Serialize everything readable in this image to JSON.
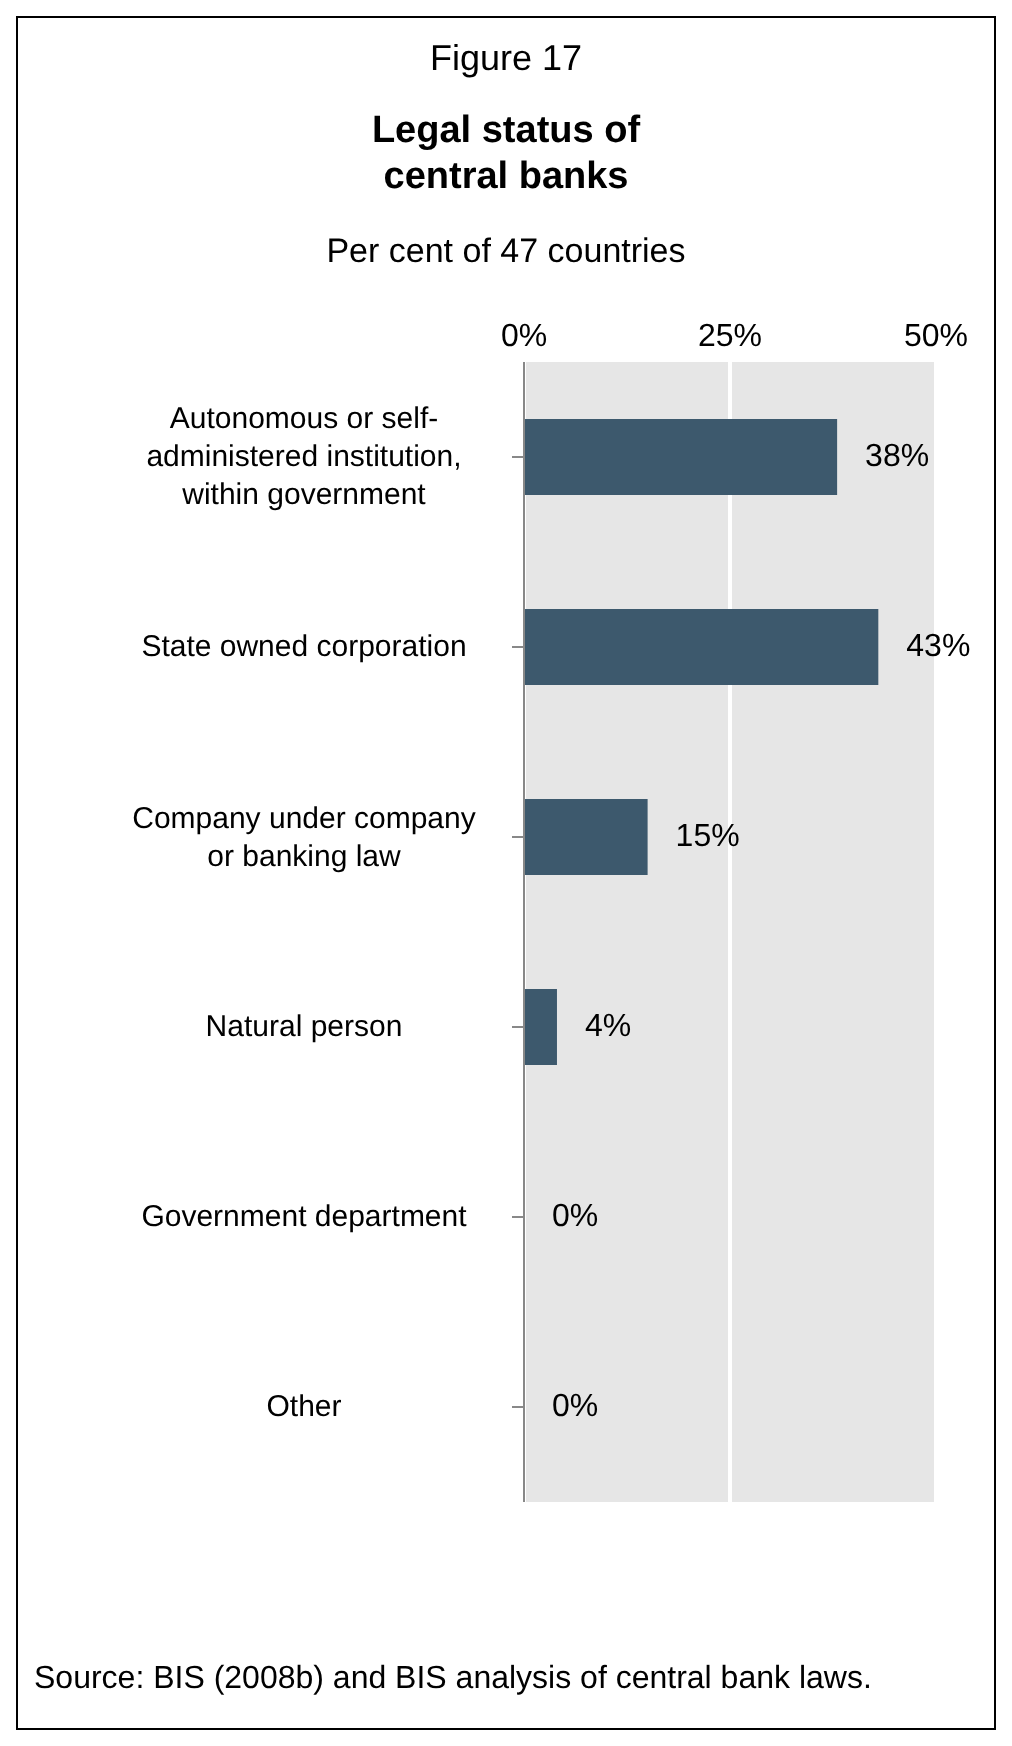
{
  "chart_data": {
    "type": "bar",
    "orientation": "horizontal",
    "title": "Legal status of central banks",
    "subtitle": "Per cent of 47 countries",
    "annotations": [
      "Figure 17",
      "Source: BIS (2008b) and BIS analysis of central bank laws."
    ],
    "categories": [
      "Autonomous or self-administered institution, within government",
      "State owned corporation",
      "Company under company or banking law",
      "Natural person",
      "Government department",
      "Other"
    ],
    "values": [
      38,
      43,
      15,
      4,
      0,
      0
    ],
    "value_labels": [
      "38%",
      "43%",
      "15%",
      "4%",
      "0%",
      "0%"
    ],
    "color": "#3d596d",
    "xlim": [
      0,
      50
    ],
    "xticks": [
      {
        "value": 0,
        "label": "0%"
      },
      {
        "value": 25,
        "label": "25%"
      },
      {
        "value": 50,
        "label": "50%"
      }
    ],
    "grid": "x"
  }
}
